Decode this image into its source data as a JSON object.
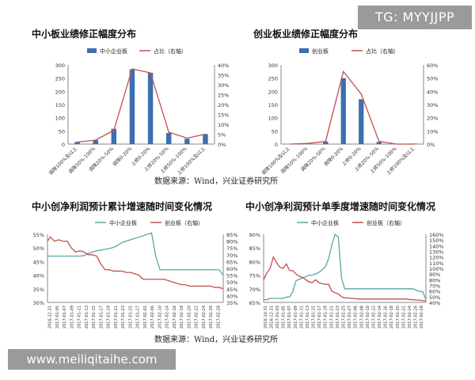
{
  "watermarks": {
    "top_right": "TG: MYYJJPP",
    "bottom_left": "www.meiliqitaihe.com"
  },
  "sources": {
    "top": "数据来源：Wind，兴业证券研究所",
    "bottom": "数据来源：Wind，兴业证券研究所"
  },
  "colors": {
    "bar": "#3d6fb0",
    "line_red": "#c0504d",
    "line_teal": "#5aa5a5",
    "axis": "#888888"
  },
  "chart_data": [
    {
      "type": "bar",
      "title": "中小板业绩修正幅度分布",
      "legend": [
        "中小企业板",
        "占比（右轴）"
      ],
      "categories": [
        "调降100%及以上",
        "调降50%-100%",
        "调降20%-50%",
        "调降0-20%",
        "上修0-20%",
        "上修20%-50%",
        "上修50%-100%",
        "上修100%及以上"
      ],
      "series": [
        {
          "name": "中小企业板",
          "axis": "left",
          "values": [
            8,
            15,
            58,
            283,
            270,
            42,
            20,
            38
          ]
        },
        {
          "name": "占比（右轴）",
          "axis": "right",
          "kind": "line",
          "values": [
            1,
            2,
            7,
            38,
            36,
            6,
            3,
            5
          ]
        }
      ],
      "ylim_left": [
        0,
        300
      ],
      "yticks_left": [
        "0",
        "50",
        "100",
        "150",
        "200",
        "250",
        "300"
      ],
      "ylim_right": [
        0,
        40
      ],
      "yticks_right": [
        "0%",
        "5%",
        "10%",
        "15%",
        "20%",
        "25%",
        "30%",
        "35%",
        "40%"
      ]
    },
    {
      "type": "bar",
      "title": "创业板业绩修正幅度分布",
      "legend": [
        "创业板",
        "占比（右轴）"
      ],
      "categories": [
        "调降100%及以上",
        "调降50%-100%",
        "调降20%-50%",
        "调降0-20%",
        "上修0-20%",
        "上修20%-50%",
        "上修50%-100%",
        "上修100%及以上"
      ],
      "series": [
        {
          "name": "创业板",
          "axis": "left",
          "values": [
            0,
            2,
            10,
            250,
            170,
            8,
            0,
            2
          ]
        },
        {
          "name": "占比（右轴）",
          "axis": "right",
          "kind": "line",
          "values": [
            0,
            0.5,
            2,
            55,
            38,
            2,
            0,
            0
          ]
        }
      ],
      "ylim_left": [
        0,
        300
      ],
      "yticks_left": [
        "0",
        "50",
        "100",
        "150",
        "200",
        "250",
        "300"
      ],
      "ylim_right": [
        0,
        60
      ],
      "yticks_right": [
        "0%",
        "10%",
        "20%",
        "30%",
        "40%",
        "50%",
        "60%"
      ]
    },
    {
      "type": "line",
      "title": "中小创净利润预计累计增速随时间变化情况",
      "legend": [
        "中小企业板",
        "创业板（右轴）"
      ],
      "x_labels": [
        "2016-12-31",
        "2017-01-05",
        "2017-01-07",
        "2017-01-09",
        "2017-01-11",
        "2017-01-13",
        "2017-01-15",
        "2017-01-17",
        "2017-01-19",
        "2017-01-21",
        "2017-01-23",
        "2017-01-25",
        "2017-01-27",
        "2017-02-01",
        "2017-02-06",
        "2017-02-10",
        "2017-02-14",
        "2017-02-16",
        "2017-02-18",
        "2017-02-20",
        "2017-02-22",
        "2017-02-24",
        "2017-02-26",
        "2017-02-28"
      ],
      "x": [
        0,
        2,
        5,
        8,
        11,
        14,
        17,
        20,
        23,
        26,
        29,
        32,
        35,
        38,
        41,
        44,
        47,
        50,
        53,
        56,
        59,
        62,
        65,
        68,
        71,
        74,
        77,
        80,
        83,
        86,
        89,
        92,
        95,
        98,
        101,
        104,
        107,
        110,
        113,
        116,
        119,
        122,
        125
      ],
      "series": [
        {
          "name": "中小企业板",
          "axis": "left",
          "values": [
            47,
            47,
            47,
            47,
            47,
            47,
            47,
            47,
            47,
            47.2,
            48,
            48.5,
            49,
            49.2,
            49.5,
            49.8,
            50.2,
            51,
            52,
            52.5,
            53,
            53.5,
            54,
            54.5,
            55,
            55.5,
            47,
            42,
            42,
            42,
            42,
            42,
            42,
            42,
            42,
            42,
            42,
            42,
            42,
            42,
            42,
            42,
            40
          ]
        },
        {
          "name": "创业板（右轴）",
          "axis": "right",
          "values": [
            80,
            83,
            80,
            81,
            80,
            80,
            75,
            72,
            73,
            72,
            70,
            70,
            69,
            63,
            59,
            59,
            58,
            58,
            58,
            57,
            57,
            56,
            55,
            52,
            52,
            52,
            52,
            52,
            52,
            51,
            50,
            49,
            48,
            48,
            47,
            47,
            47,
            47,
            47,
            47,
            46,
            46,
            45
          ]
        }
      ],
      "ylim_left": [
        30,
        55
      ],
      "yticks_left": [
        "30%",
        "35%",
        "40%",
        "45%",
        "50%",
        "55%"
      ],
      "ylim_right": [
        35,
        85
      ],
      "yticks_right": [
        "35%",
        "40%",
        "45%",
        "50%",
        "55%",
        "60%",
        "65%",
        "70%",
        "75%",
        "80%",
        "85%"
      ]
    },
    {
      "type": "line",
      "title": "中小创净利润预计单季度增速随时间变化情况",
      "legend": [
        "中小企业板",
        "创业板（右轴）"
      ],
      "x_labels": [
        "2016-10-31",
        "2016-12-31",
        "2017-01-03",
        "2017-01-05",
        "2017-01-07",
        "2017-01-09",
        "2017-01-11",
        "2017-01-13",
        "2017-01-15",
        "2017-01-17",
        "2017-01-19",
        "2017-01-21",
        "2017-01-23",
        "2017-01-25",
        "2017-01-27",
        "2017-02-06",
        "2017-02-08",
        "2017-02-10",
        "2017-02-12",
        "2017-02-14",
        "2017-02-16",
        "2017-02-18",
        "2017-02-20",
        "2017-02-22",
        "2017-02-24",
        "2017-02-26",
        "2017-02-28"
      ],
      "x": [
        0,
        3,
        6,
        9,
        12,
        15,
        18,
        21,
        24,
        27,
        30,
        33,
        36,
        39,
        42,
        45,
        48,
        51,
        54,
        57,
        60,
        63,
        66,
        69,
        72,
        75,
        78,
        81,
        84,
        87,
        90,
        93,
        96,
        99,
        102,
        105,
        108,
        111,
        114,
        117,
        120,
        123,
        126,
        129,
        132,
        135,
        138,
        141,
        144,
        147,
        150
      ],
      "series": [
        {
          "name": "中小企业板",
          "axis": "left",
          "values": [
            66,
            66,
            66.5,
            66.5,
            66.5,
            66.5,
            66.5,
            67,
            67,
            69,
            73,
            73.5,
            74,
            74.5,
            75,
            75,
            75.5,
            76,
            77,
            78,
            81,
            86,
            90,
            89,
            74,
            70,
            70,
            70,
            70,
            70,
            70,
            70,
            70,
            70,
            70,
            70,
            70,
            70,
            70,
            70,
            70,
            70,
            70,
            70,
            70,
            70,
            70,
            69.5,
            69,
            69,
            66
          ]
        },
        {
          "name": "创业板（右轴）",
          "axis": "right",
          "values": [
            80,
            92,
            100,
            120,
            110,
            102,
            100,
            108,
            96,
            96,
            90,
            86,
            84,
            80,
            76,
            75,
            80,
            75,
            73,
            72,
            72,
            60,
            57,
            55,
            50,
            48,
            48,
            47,
            47,
            46,
            46,
            46,
            46,
            46,
            46,
            46,
            46,
            46,
            46,
            46,
            46,
            46,
            46,
            46,
            46,
            45,
            45,
            44,
            44,
            43,
            43
          ]
        }
      ],
      "ylim_left": [
        65,
        90
      ],
      "yticks_left": [
        "65%",
        "70%",
        "75%",
        "80%",
        "85%",
        "90%"
      ],
      "ylim_right": [
        40,
        160
      ],
      "yticks_right": [
        "40%",
        "50%",
        "60%",
        "70%",
        "80%",
        "90%",
        "100%",
        "110%",
        "120%",
        "130%",
        "140%",
        "150%",
        "160%"
      ]
    }
  ]
}
